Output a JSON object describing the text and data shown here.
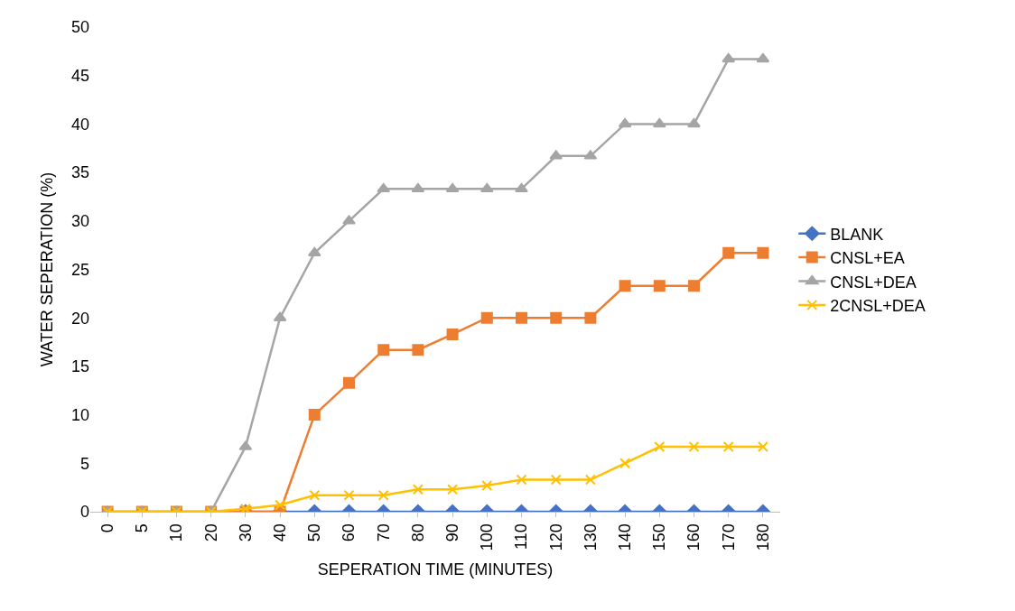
{
  "chart_data": {
    "type": "line",
    "xlabel": "SEPERATION TIME (MINUTES)",
    "ylabel": "WATER SEPERATION (%)",
    "categories": [
      "0",
      "5",
      "10",
      "20",
      "30",
      "40",
      "50",
      "60",
      "70",
      "80",
      "90",
      "100",
      "110",
      "120",
      "130",
      "140",
      "150",
      "160",
      "170",
      "180"
    ],
    "ylim": [
      0,
      50
    ],
    "yticks": [
      0,
      5,
      10,
      15,
      20,
      25,
      30,
      35,
      40,
      45,
      50
    ],
    "grid": false,
    "legend": "right",
    "series": [
      {
        "name": "BLANK",
        "color": "#4472c4",
        "marker": "diamond",
        "values": [
          null,
          null,
          null,
          null,
          0,
          0,
          0,
          0,
          0,
          0,
          0,
          0,
          0,
          0,
          0,
          0,
          0,
          0,
          0,
          0
        ]
      },
      {
        "name": "CNSL+EA",
        "color": "#ed7d31",
        "marker": "square",
        "values": [
          0,
          0,
          0,
          0,
          0,
          0,
          10,
          13.3,
          16.7,
          16.7,
          18.3,
          20,
          20,
          20,
          20,
          23.3,
          23.3,
          23.3,
          26.7,
          26.7
        ]
      },
      {
        "name": "CNSL+DEA",
        "color": "#a5a5a5",
        "marker": "triangle",
        "values": [
          0,
          0,
          0,
          0,
          6.7,
          20,
          26.7,
          30,
          33.3,
          33.3,
          33.3,
          33.3,
          33.3,
          36.7,
          36.7,
          40,
          40,
          40,
          46.7,
          46.7
        ]
      },
      {
        "name": "2CNSL+DEA",
        "color": "#ffc000",
        "marker": "cross",
        "values": [
          0,
          0,
          0,
          0,
          0.3,
          0.7,
          1.7,
          1.7,
          1.7,
          2.3,
          2.3,
          2.7,
          3.3,
          3.3,
          3.3,
          5,
          6.7,
          6.7,
          6.7,
          6.7
        ]
      }
    ]
  }
}
